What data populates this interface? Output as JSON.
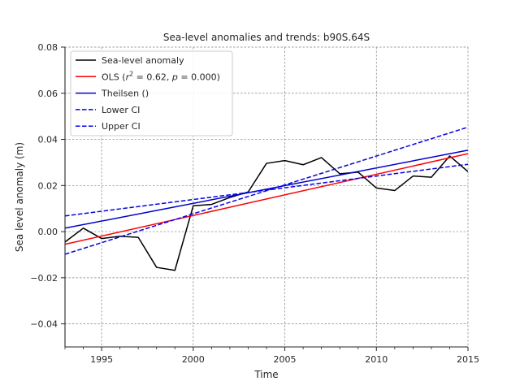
{
  "chart_data": {
    "type": "line",
    "title": "Sea-level anomalies and trends: b90S.64S",
    "xlabel": "Time",
    "ylabel": "Sea level anomaly (m)",
    "xlim": [
      1993,
      2015
    ],
    "ylim": [
      -0.05,
      0.08
    ],
    "xticks": [
      1995,
      2000,
      2005,
      2010,
      2015
    ],
    "yticks": [
      -0.04,
      -0.02,
      0.0,
      0.02,
      0.04,
      0.06,
      0.08
    ],
    "ytick_labels": [
      "−0.04",
      "−0.02",
      "0.00",
      "0.02",
      "0.04",
      "0.06",
      "0.08"
    ],
    "grid": true,
    "legend_position": "top-left",
    "colors": {
      "anomaly": "#000000",
      "ols": "#ff0000",
      "theilsen": "#0000cc",
      "ci": "#0000ff",
      "grid": "#808080"
    },
    "series": [
      {
        "name": "Sea-level anomaly",
        "style": "solid",
        "color": "#000000",
        "x": [
          1993,
          1994,
          1995,
          1996,
          1997,
          1998,
          1999,
          2000,
          2001,
          2002,
          2003,
          2004,
          2005,
          2006,
          2007,
          2008,
          2009,
          2010,
          2011,
          2012,
          2013,
          2014,
          2015
        ],
        "y": [
          -0.0045,
          0.0015,
          -0.003,
          -0.002,
          -0.0025,
          -0.0155,
          -0.0168,
          0.0112,
          0.0118,
          0.0148,
          0.0172,
          0.0296,
          0.0308,
          0.029,
          0.0321,
          0.0251,
          0.0258,
          0.0189,
          0.0178,
          0.0241,
          0.0236,
          0.0328,
          0.026
        ]
      },
      {
        "name": "OLS",
        "name_parts": [
          "OLS (",
          "r",
          "2",
          " = 0.62, ",
          "p",
          " = 0.000)"
        ],
        "style": "solid",
        "color": "#ff0000",
        "x": [
          1993,
          2015
        ],
        "y": [
          -0.0055,
          0.0338
        ]
      },
      {
        "name": "Theilsen ()",
        "style": "solid",
        "color": "#0000cc",
        "x": [
          1993,
          2015
        ],
        "y": [
          0.0015,
          0.0353
        ]
      },
      {
        "name": "Lower CI",
        "style": "dashed",
        "color": "#0000ff",
        "x": [
          1993,
          2015
        ],
        "y": [
          0.0068,
          0.0292
        ]
      },
      {
        "name": "Upper CI",
        "style": "dashed",
        "color": "#0000ff",
        "x": [
          1993,
          2015
        ],
        "y": [
          -0.0098,
          0.0453
        ]
      }
    ]
  }
}
